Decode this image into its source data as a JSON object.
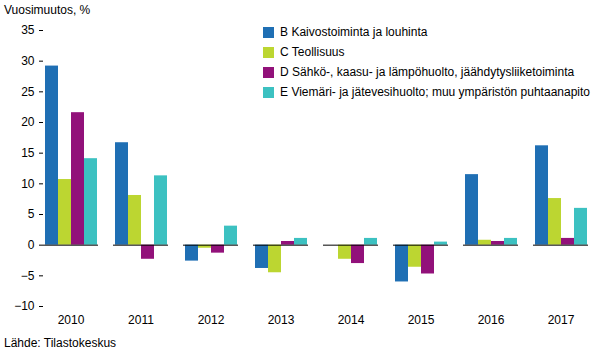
{
  "chart_data": {
    "type": "bar",
    "y_label": "Vuosimuutos, %",
    "source": "Lähde: Tilastokeskus",
    "categories": [
      "2010",
      "2011",
      "2012",
      "2013",
      "2014",
      "2015",
      "2016",
      "2017"
    ],
    "series": [
      {
        "name": "B Kaivostoiminta ja louhinta",
        "color": "#1f6fb4",
        "values": [
          29.2,
          16.7,
          -2.6,
          -3.8,
          0,
          -6.0,
          11.5,
          16.2
        ]
      },
      {
        "name": "C Teollisuus",
        "color": "#bcd631",
        "values": [
          10.7,
          8.1,
          -0.5,
          -4.5,
          -2.3,
          -3.6,
          0.8,
          7.6
        ]
      },
      {
        "name": "D Sähkö-, kaasu- ja lämpöhuolto, jäähdytysliiketoiminta",
        "color": "#92117a",
        "values": [
          21.6,
          -2.3,
          -1.3,
          0.6,
          -3.0,
          -4.7,
          0.6,
          1.1
        ]
      },
      {
        "name": "E Viemäri- ja jätevesihuolto; muu ympäristön puhtaanapito",
        "color": "#3cc1c1",
        "values": [
          14.1,
          11.3,
          3.1,
          1.1,
          1.1,
          0.5,
          1.1,
          6.0
        ]
      }
    ],
    "ylim": [
      -10,
      35
    ],
    "yticks": [
      -10,
      -5,
      0,
      5,
      10,
      15,
      20,
      25,
      30,
      35
    ],
    "grid": false,
    "legend": "top-right"
  }
}
